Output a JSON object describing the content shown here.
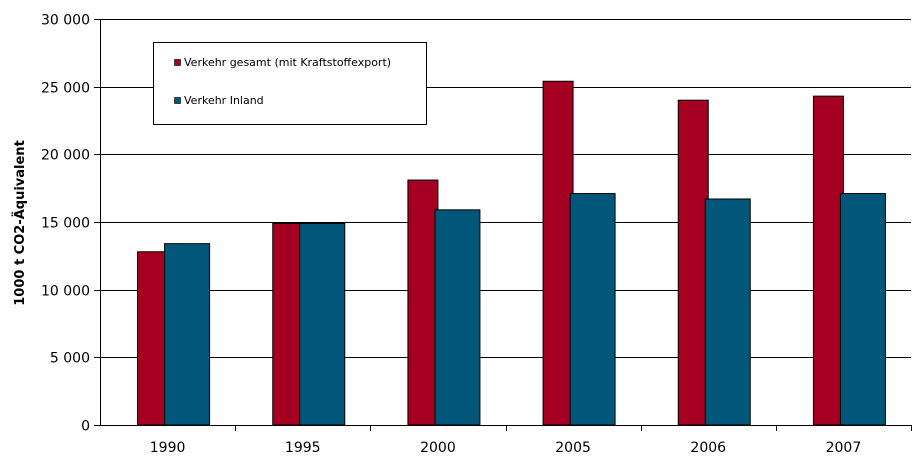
{
  "chart_data": {
    "type": "bar",
    "categories": [
      "1990",
      "1995",
      "2000",
      "2005",
      "2006",
      "2007"
    ],
    "series": [
      {
        "name": "Verkehr gesamt (mit Kraftstoffexport)",
        "color": "#A50021",
        "values": [
          12800,
          14900,
          18100,
          25400,
          24000,
          24300
        ]
      },
      {
        "name": "Verkehr Inland",
        "color": "#00577A",
        "values": [
          13400,
          14900,
          15900,
          17100,
          16700,
          17100
        ]
      }
    ],
    "ylabel": "1000 t CO2-Äquivalent",
    "xlabel": "",
    "ylim": [
      0,
      30000
    ],
    "yticks": [
      0,
      5000,
      10000,
      15000,
      20000,
      25000,
      30000
    ],
    "ytick_labels": [
      "0",
      "5 000",
      "10 000",
      "15 000",
      "20 000",
      "25 000",
      "30 000"
    ],
    "grid": true,
    "legend_position": "top-left"
  }
}
